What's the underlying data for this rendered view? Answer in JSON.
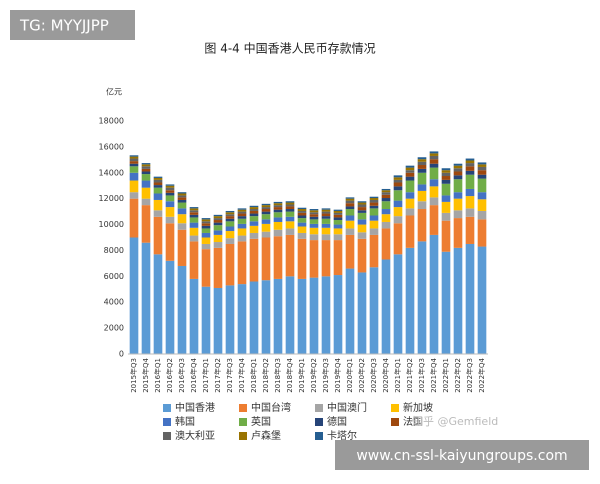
{
  "overlays": {
    "tag": "TG: MYYJJPP",
    "watermark": "知乎 @Gemfield",
    "banner": "www.cn-ssl-kaiyungroups.com"
  },
  "chart_data": {
    "type": "stacked_bar",
    "title": "图 4-4  中国香港人民币存款情况",
    "y_label": "亿元",
    "categories": [
      "2015年Q3",
      "2015年Q4",
      "2016年Q1",
      "2016年Q2",
      "2016年Q3",
      "2016年Q4",
      "2017年Q1",
      "2017年Q2",
      "2017年Q3",
      "2017年Q4",
      "2018年Q1",
      "2018年Q2",
      "2018年Q3",
      "2018年Q4",
      "2019年Q1",
      "2019年Q2",
      "2019年Q3",
      "2019年Q4",
      "2020年Q1",
      "2020年Q2",
      "2020年Q3",
      "2020年Q4",
      "2021年Q1",
      "2021年Q2",
      "2021年Q3",
      "2021年Q4",
      "2022年Q1",
      "2022年Q2",
      "2022年Q3",
      "2022年Q4"
    ],
    "ylim": [
      0,
      18000
    ],
    "yticks": [
      0,
      2000,
      4000,
      6000,
      8000,
      10000,
      12000,
      14000,
      16000,
      18000
    ],
    "grid": false,
    "series": [
      {
        "name": "中国香港",
        "color": "#5b9bd5",
        "values": [
          9000,
          8600,
          7700,
          7200,
          6800,
          5800,
          5200,
          5100,
          5300,
          5400,
          5600,
          5700,
          5800,
          6000,
          5800,
          5900,
          6000,
          6100,
          6600,
          6300,
          6700,
          7300,
          7700,
          8200,
          8700,
          9200,
          7900,
          8200,
          8500,
          8300
        ]
      },
      {
        "name": "中国台湾",
        "color": "#ed7d31",
        "values": [
          3000,
          2900,
          2900,
          2900,
          2800,
          2900,
          2900,
          3100,
          3200,
          3300,
          3300,
          3300,
          3300,
          3200,
          3100,
          2900,
          2800,
          2700,
          2600,
          2600,
          2500,
          2400,
          2400,
          2500,
          2500,
          2300,
          2400,
          2300,
          2100,
          2100
        ]
      },
      {
        "name": "中国澳门",
        "color": "#a5a5a5",
        "values": [
          500,
          500,
          500,
          500,
          500,
          450,
          400,
          450,
          450,
          450,
          450,
          450,
          500,
          500,
          450,
          450,
          450,
          450,
          500,
          500,
          500,
          500,
          550,
          550,
          600,
          600,
          600,
          600,
          650,
          650
        ]
      },
      {
        "name": "新加坡",
        "color": "#ffc000",
        "values": [
          900,
          850,
          800,
          750,
          700,
          600,
          500,
          550,
          550,
          550,
          550,
          600,
          600,
          550,
          500,
          500,
          500,
          450,
          600,
          600,
          600,
          600,
          700,
          750,
          800,
          850,
          850,
          900,
          950,
          900
        ]
      },
      {
        "name": "韩国",
        "color": "#4472c4",
        "values": [
          600,
          550,
          500,
          450,
          450,
          400,
          350,
          350,
          350,
          350,
          350,
          350,
          350,
          350,
          300,
          300,
          300,
          300,
          400,
          400,
          400,
          400,
          500,
          500,
          500,
          550,
          500,
          500,
          550,
          550
        ]
      },
      {
        "name": "英国",
        "color": "#70ad47",
        "values": [
          500,
          500,
          450,
          450,
          450,
          400,
          350,
          400,
          400,
          400,
          400,
          400,
          400,
          400,
          350,
          350,
          400,
          350,
          500,
          500,
          550,
          600,
          800,
          900,
          900,
          900,
          900,
          1000,
          1100,
          1050
        ]
      },
      {
        "name": "德国",
        "color": "#264478",
        "values": [
          200,
          200,
          200,
          200,
          200,
          200,
          200,
          200,
          200,
          200,
          200,
          200,
          200,
          200,
          200,
          200,
          200,
          200,
          200,
          200,
          200,
          250,
          300,
          300,
          300,
          300,
          300,
          300,
          300,
          300
        ]
      },
      {
        "name": "法国",
        "color": "#9e480e",
        "values": [
          200,
          200,
          200,
          200,
          200,
          200,
          200,
          200,
          200,
          200,
          200,
          200,
          200,
          200,
          200,
          200,
          200,
          200,
          250,
          250,
          250,
          250,
          300,
          300,
          300,
          350,
          300,
          300,
          350,
          350
        ]
      },
      {
        "name": "澳大利亚",
        "color": "#636363",
        "values": [
          200,
          200,
          200,
          200,
          150,
          150,
          150,
          150,
          150,
          150,
          150,
          150,
          150,
          150,
          150,
          150,
          150,
          150,
          200,
          200,
          200,
          200,
          200,
          200,
          250,
          250,
          250,
          250,
          250,
          250
        ]
      },
      {
        "name": "卢森堡",
        "color": "#997300",
        "values": [
          150,
          150,
          150,
          150,
          150,
          150,
          150,
          150,
          150,
          150,
          150,
          150,
          150,
          150,
          150,
          150,
          150,
          150,
          150,
          150,
          150,
          150,
          200,
          200,
          200,
          200,
          200,
          200,
          200,
          200
        ]
      },
      {
        "name": "卡塔尔",
        "color": "#255e91",
        "values": [
          100,
          100,
          100,
          100,
          100,
          100,
          100,
          100,
          100,
          100,
          100,
          100,
          100,
          100,
          100,
          100,
          100,
          100,
          100,
          100,
          100,
          100,
          150,
          150,
          150,
          150,
          150,
          150,
          150,
          150
        ]
      }
    ]
  }
}
